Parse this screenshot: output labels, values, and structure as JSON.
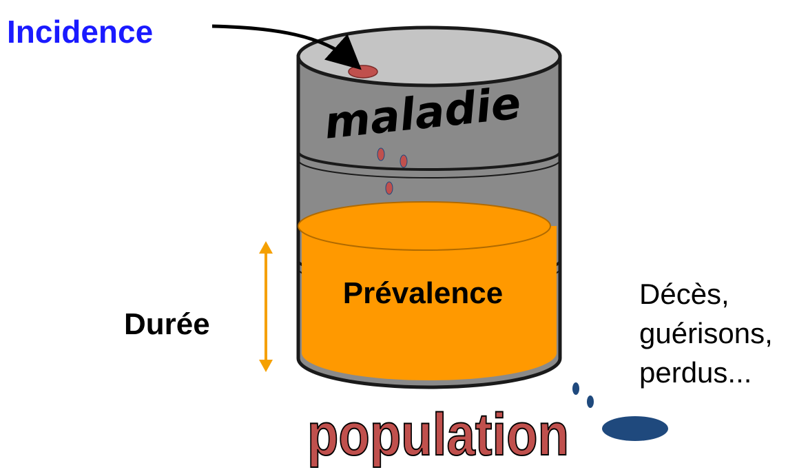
{
  "labels": {
    "incidence": "Incidence",
    "maladie": "maladie",
    "prevalence": "Prévalence",
    "duree": "Durée",
    "outflow_lines": [
      "Décès,",
      "guérisons,",
      "perdus..."
    ],
    "population": "population"
  },
  "colors": {
    "incidence_text": "#1a1aff",
    "barrel_body": "#8a8a8a",
    "barrel_top": "#c4c4c4",
    "fluid": "#ff9900",
    "fluid_edge": "#d98200",
    "drop_red": "#c0504d",
    "drop_blue": "#1f497d",
    "population_fill": "#c0504d",
    "duration_arrow": "#f5a000"
  },
  "icons": {
    "barrel": "barrel-icon",
    "incidence_arrow": "curved-arrow-icon",
    "duration_arrow": "double-arrow-icon",
    "puddle": "puddle-icon"
  }
}
